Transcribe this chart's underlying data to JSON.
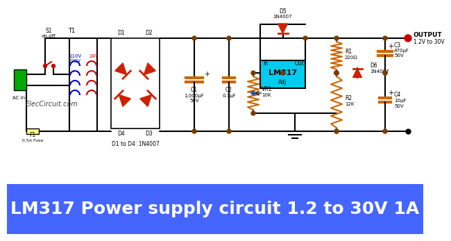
{
  "title": "LM317 Power supply circuit 1.2 to 30V 1A",
  "title_bg": "#4466ff",
  "title_color": "#ffffff",
  "title_fontsize": 18,
  "wire_color": "#000000",
  "line_width": 1.5,
  "dot_color": "#7a3b00",
  "diode_fill": "#cc2200",
  "lm317_fill": "#00ccee",
  "green_plug": "#00aa00",
  "resistor_color": "#cc6600",
  "capacitor_color": "#cc6600",
  "switch_color": "#cc0000",
  "transformer_primary": "#0000cc",
  "transformer_secondary": "#cc0000",
  "output_dot": "#cc0000",
  "arrow_color": "#cc0000",
  "watermark": "ElecCircuit.com",
  "watermark_color": "#444444",
  "output_text": "OUTPUT\n1.2V to 30V"
}
